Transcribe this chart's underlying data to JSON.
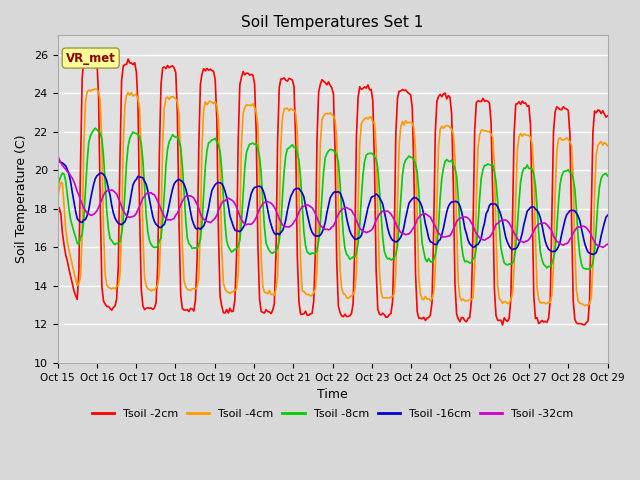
{
  "title": "Soil Temperatures Set 1",
  "xlabel": "Time",
  "ylabel": "Soil Temperature (C)",
  "ylim": [
    10,
    27
  ],
  "yticks": [
    10,
    12,
    14,
    16,
    18,
    20,
    22,
    24,
    26
  ],
  "x_labels": [
    "Oct 15",
    "Oct 16",
    "Oct 17",
    "Oct 18",
    "Oct 19",
    "Oct 20",
    "Oct 21",
    "Oct 22",
    "Oct 23",
    "Oct 24",
    "Oct 25",
    "Oct 26",
    "Oct 27",
    "Oct 28",
    "Oct 29"
  ],
  "figsize": [
    6.4,
    4.8
  ],
  "dpi": 100,
  "fig_facecolor": "#d8d8d8",
  "ax_facecolor": "#e0e0e0",
  "grid_color": "#ffffff",
  "series": [
    {
      "label": "Tsoil -2cm",
      "color": "#ff0000",
      "lw": 1.2
    },
    {
      "label": "Tsoil -4cm",
      "color": "#ff9900",
      "lw": 1.2
    },
    {
      "label": "Tsoil -8cm",
      "color": "#00cc00",
      "lw": 1.2
    },
    {
      "label": "Tsoil -16cm",
      "color": "#0000cc",
      "lw": 1.2
    },
    {
      "label": "Tsoil -32cm",
      "color": "#cc00cc",
      "lw": 1.2
    }
  ],
  "annotation_text": "VR_met",
  "annotation_color": "#8b0000"
}
